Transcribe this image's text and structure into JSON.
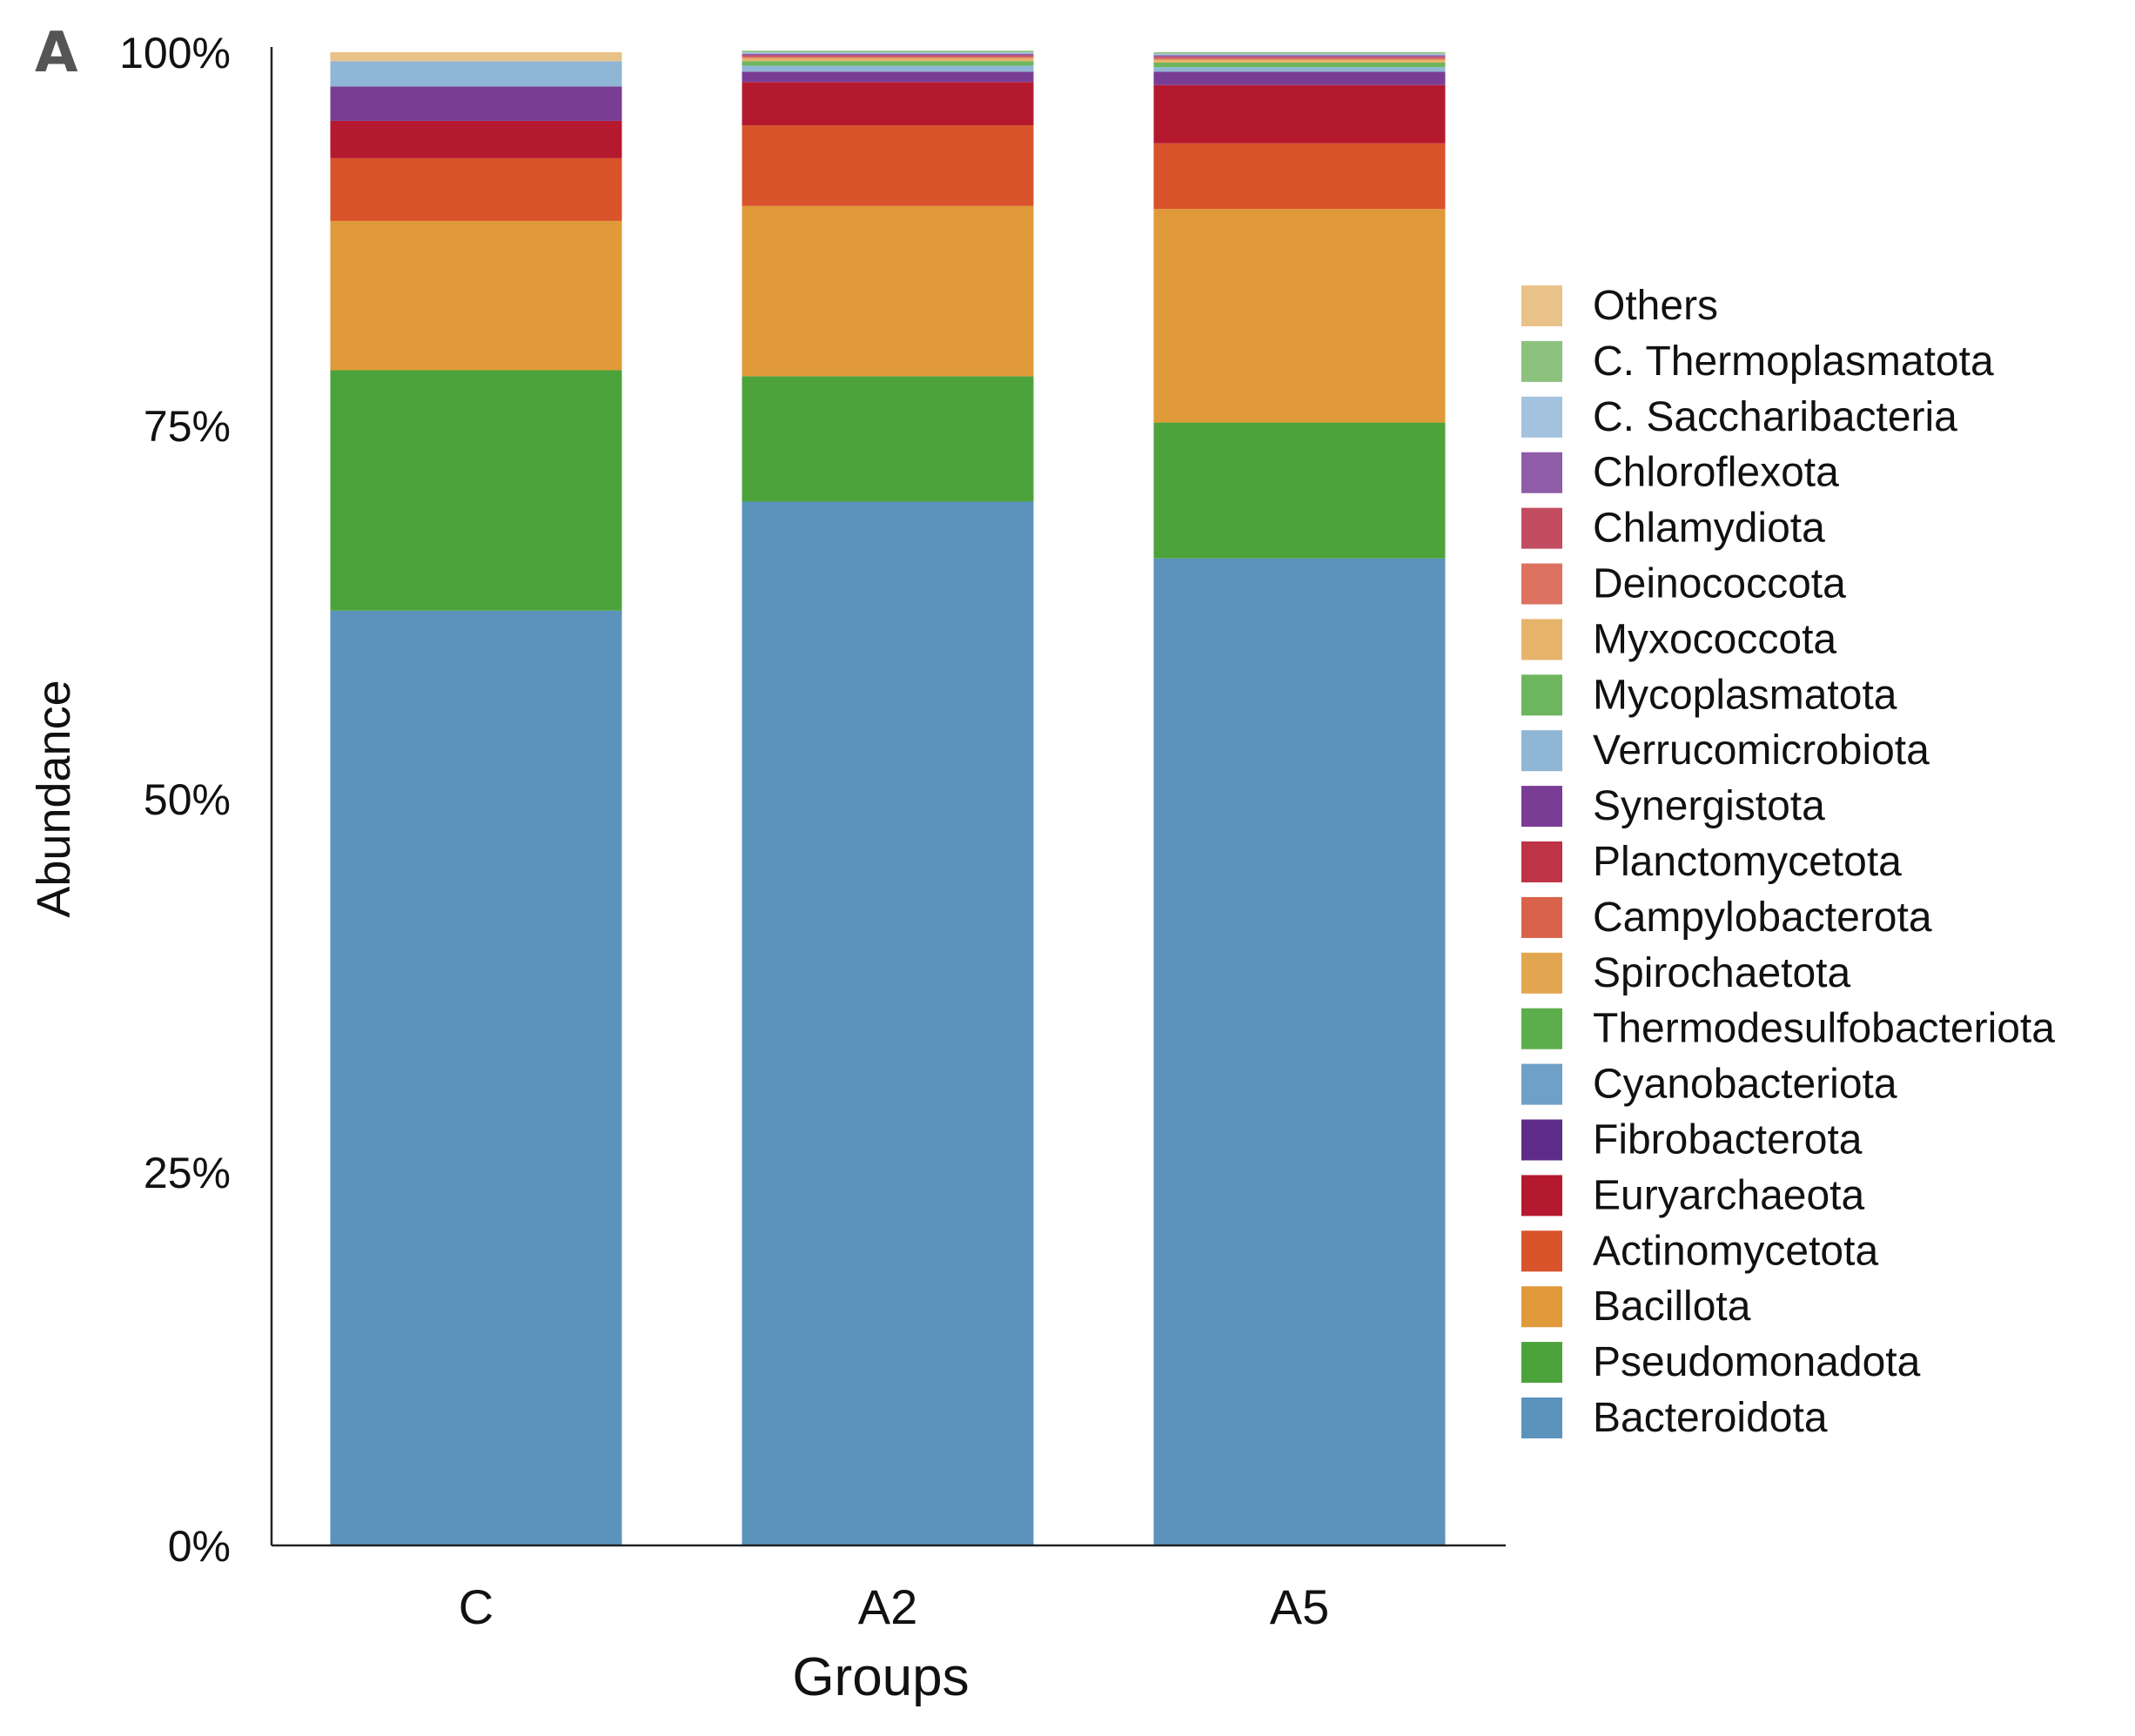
{
  "panel_label": "A",
  "chart_data": {
    "type": "bar",
    "stacked": true,
    "title": "",
    "xlabel": "Groups",
    "ylabel": "Abundance",
    "ylim": [
      0,
      100
    ],
    "yticks": [
      "0%",
      "25%",
      "50%",
      "75%",
      "100%"
    ],
    "ytick_values": [
      0,
      25,
      50,
      75,
      100
    ],
    "categories": [
      "C",
      "A2",
      "A5"
    ],
    "legend_position": "right",
    "series": [
      {
        "name": "Bacteroidota",
        "color": "#5B93BD",
        "values": [
          62.6,
          69.9,
          66.1
        ]
      },
      {
        "name": "Pseudomonadota",
        "color": "#4CA33C",
        "values": [
          16.1,
          8.4,
          9.1
        ]
      },
      {
        "name": "Bacillota",
        "color": "#E09A3A",
        "values": [
          10.0,
          11.4,
          14.3
        ]
      },
      {
        "name": "Actinomycetota",
        "color": "#D9532B",
        "values": [
          4.2,
          5.4,
          4.4
        ]
      },
      {
        "name": "Euryarchaeota",
        "color": "#B5192F",
        "values": [
          2.5,
          2.9,
          3.9
        ]
      },
      {
        "name": "Fibrobacterota",
        "color": "#5D2C88",
        "values": [
          0.0,
          0.0,
          0.0
        ]
      },
      {
        "name": "Cyanobacteriota",
        "color": "#6FA0C8",
        "values": [
          0.0,
          0.0,
          0.0
        ]
      },
      {
        "name": "Thermodesulfobacteriota",
        "color": "#5CAE4C",
        "values": [
          0.0,
          0.0,
          0.0
        ]
      },
      {
        "name": "Spirochaetota",
        "color": "#E2A650",
        "values": [
          0.0,
          0.0,
          0.0
        ]
      },
      {
        "name": "Campylobacterota",
        "color": "#D9624A",
        "values": [
          0.0,
          0.0,
          0.0
        ]
      },
      {
        "name": "Planctomycetota",
        "color": "#BE3346",
        "values": [
          0.0,
          0.0,
          0.0
        ]
      },
      {
        "name": "Synergistota",
        "color": "#7A3D96",
        "values": [
          2.3,
          0.7,
          0.9
        ]
      },
      {
        "name": "Verrucomicrobiota",
        "color": "#8FB6D4",
        "values": [
          1.7,
          0.4,
          0.3
        ]
      },
      {
        "name": "Mycoplasmatota",
        "color": "#6DB65E",
        "values": [
          0.0,
          0.3,
          0.3
        ]
      },
      {
        "name": "Myxococcota",
        "color": "#E6B36A",
        "values": [
          0.0,
          0.2,
          0.2
        ]
      },
      {
        "name": "Deinococcota",
        "color": "#DD7260",
        "values": [
          0.0,
          0.1,
          0.1
        ]
      },
      {
        "name": "Chlamydiota",
        "color": "#C24D60",
        "values": [
          0.0,
          0.1,
          0.1
        ]
      },
      {
        "name": "Chloroflexota",
        "color": "#8F5CA8",
        "values": [
          0.0,
          0.1,
          0.1
        ]
      },
      {
        "name": "C. Saccharibacteria",
        "color": "#A3C2DD",
        "values": [
          0.0,
          0.1,
          0.1
        ]
      },
      {
        "name": "C. Thermoplasmatota",
        "color": "#8CC17E",
        "values": [
          0.0,
          0.1,
          0.1
        ]
      },
      {
        "name": "Others",
        "color": "#E9C28A",
        "values": [
          0.6,
          0.0,
          0.0
        ]
      }
    ]
  }
}
